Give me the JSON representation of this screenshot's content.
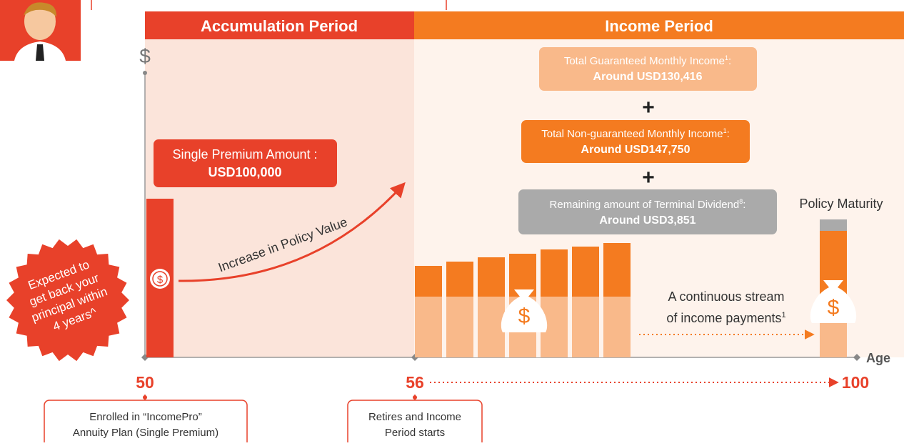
{
  "header": {
    "accumulation": "Accumulation Period",
    "income": "Income Period"
  },
  "axis": {
    "y_symbol": "$",
    "x_label": "Age",
    "ages": [
      "50",
      "56",
      "100"
    ]
  },
  "premium": {
    "label": "Single Premium Amount :",
    "amount": "USD100,000"
  },
  "growth_label": "Increase in Policy Value",
  "income_boxes": [
    {
      "label": "Total Guaranteed Monthly Income",
      "note": "1",
      "suffix": ":",
      "amount": "Around USD130,416"
    },
    {
      "label": "Total Non-guaranteed Monthly Income",
      "note": "1",
      "suffix": ":",
      "amount": "Around USD147,750"
    },
    {
      "label": "Remaining amount of Terminal Dividend",
      "note": "8",
      "suffix": ":",
      "amount": "Around USD3,851"
    }
  ],
  "plus": "+",
  "maturity": "Policy Maturity",
  "stream": {
    "lines": [
      "A continuous stream",
      "of income payments"
    ],
    "note": "1"
  },
  "badge": [
    "Expected to",
    "get back your",
    "principal within",
    "4 years^"
  ],
  "icon": "$",
  "milestones": [
    {
      "lines": [
        "Enrolled in “IncomePro”",
        "Annuity Plan (Single Premium)"
      ]
    },
    {
      "lines": [
        "Retires and Income",
        "Period starts"
      ]
    }
  ]
}
